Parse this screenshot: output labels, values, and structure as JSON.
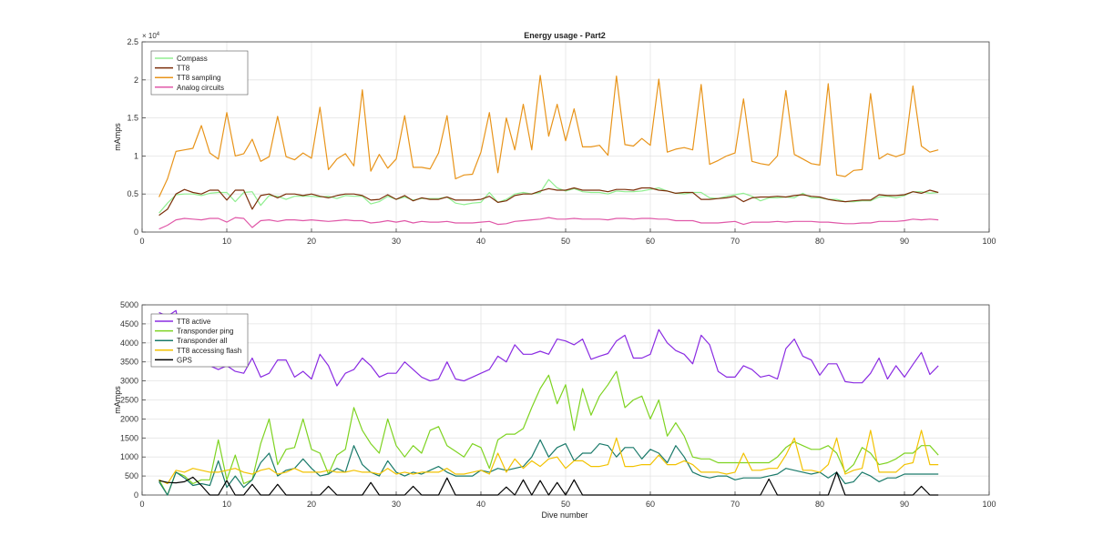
{
  "chart_data": [
    {
      "type": "line",
      "title": "Energy usage - Part2",
      "xlabel": "",
      "ylabel": "mAmps",
      "xlim": [
        0,
        100
      ],
      "ylim": [
        0,
        25000
      ],
      "xticks": [
        0,
        10,
        20,
        30,
        40,
        50,
        60,
        70,
        80,
        90,
        100
      ],
      "yticks": [
        0,
        0.5,
        1,
        1.5,
        2,
        2.5
      ],
      "y_exponent_label": "× 10",
      "y_exponent_power": "4",
      "grid": true,
      "legend_position": "top-left",
      "x": [
        2,
        3,
        4,
        5,
        6,
        7,
        8,
        9,
        10,
        11,
        12,
        13,
        14,
        15,
        16,
        17,
        18,
        19,
        20,
        21,
        22,
        23,
        24,
        25,
        26,
        27,
        28,
        29,
        30,
        31,
        32,
        33,
        34,
        35,
        36,
        37,
        38,
        39,
        40,
        41,
        42,
        43,
        44,
        45,
        46,
        47,
        48,
        49,
        50,
        51,
        52,
        53,
        54,
        55,
        56,
        57,
        58,
        59,
        60,
        61,
        62,
        63,
        64,
        65,
        66,
        67,
        68,
        69,
        70,
        71,
        72,
        73,
        74,
        75,
        76,
        77,
        78,
        79,
        80,
        81,
        82,
        83,
        84,
        85,
        86,
        87,
        88,
        89,
        90,
        91,
        92,
        93,
        94
      ],
      "series": [
        {
          "name": "Compass",
          "color": "#90ee90",
          "values": [
            2500,
            3800,
            4900,
            5000,
            5000,
            4800,
            5100,
            5200,
            5200,
            4000,
            5200,
            5300,
            3500,
            4800,
            4700,
            4300,
            4700,
            4700,
            4700,
            4600,
            4700,
            4400,
            4800,
            4700,
            4700,
            3700,
            4000,
            4700,
            4300,
            4600,
            4200,
            4400,
            4400,
            4400,
            4600,
            3800,
            3600,
            3800,
            3900,
            5200,
            3900,
            4300,
            5000,
            5200,
            5000,
            5200,
            6900,
            5800,
            5400,
            5700,
            5300,
            5200,
            5200,
            5000,
            5400,
            5300,
            5300,
            5400,
            5600,
            5800,
            5400,
            5100,
            5000,
            5200,
            5200,
            4500,
            4400,
            4700,
            4900,
            5100,
            4700,
            4100,
            4500,
            4500,
            4600,
            4500,
            5100,
            4500,
            4500,
            4300,
            4300,
            4000,
            4000,
            4100,
            4100,
            4600,
            4700,
            4500,
            4800,
            5300,
            5300,
            5100,
            5200
          ]
        },
        {
          "name": "TT8",
          "color": "#7b2f0a",
          "values": [
            2200,
            3000,
            5000,
            5600,
            5200,
            5000,
            5500,
            5500,
            4200,
            5500,
            5500,
            3000,
            4800,
            5000,
            4500,
            5000,
            5000,
            4800,
            5000,
            4700,
            4500,
            4800,
            5000,
            5000,
            4800,
            4200,
            4300,
            4900,
            4300,
            4800,
            4100,
            4500,
            4300,
            4300,
            4600,
            4200,
            4200,
            4200,
            4300,
            4700,
            3900,
            4100,
            4800,
            5000,
            5000,
            5400,
            5700,
            5500,
            5500,
            5800,
            5500,
            5500,
            5500,
            5300,
            5600,
            5600,
            5500,
            5800,
            5800,
            5500,
            5400,
            5100,
            5200,
            5200,
            4300,
            4300,
            4400,
            4500,
            4700,
            4000,
            4500,
            4600,
            4600,
            4700,
            4600,
            4800,
            4900,
            4700,
            4600,
            4300,
            4100,
            4000,
            4100,
            4200,
            4200,
            4900,
            4800,
            4800,
            4900,
            5300,
            5100,
            5500,
            5200
          ]
        },
        {
          "name": "TT8 sampling",
          "color": "#e8941a",
          "values": [
            4600,
            7000,
            10600,
            10800,
            11000,
            14000,
            10400,
            9600,
            15700,
            10000,
            10300,
            12200,
            9300,
            9900,
            15200,
            9900,
            9500,
            10400,
            9700,
            16400,
            8200,
            9600,
            10300,
            8700,
            18700,
            8000,
            10200,
            8400,
            9600,
            15300,
            8500,
            8500,
            8300,
            10400,
            15300,
            7000,
            7500,
            7600,
            10500,
            15700,
            7800,
            15000,
            10800,
            16800,
            10800,
            20600,
            12600,
            16800,
            12000,
            16200,
            11200,
            11200,
            11400,
            10100,
            20500,
            11500,
            11300,
            12300,
            11400,
            20100,
            10500,
            10900,
            11100,
            10800,
            19400,
            8900,
            9400,
            10000,
            10400,
            17500,
            9300,
            9000,
            8800,
            10000,
            18600,
            10200,
            9600,
            9000,
            8800,
            19500,
            7500,
            7300,
            8100,
            8200,
            18200,
            9600,
            10300,
            9900,
            10300,
            19200,
            11300,
            10500,
            10800
          ]
        },
        {
          "name": "Analog circuits",
          "color": "#e058a8",
          "values": [
            400,
            900,
            1600,
            1800,
            1700,
            1600,
            1800,
            1800,
            1300,
            1900,
            1800,
            600,
            1500,
            1600,
            1400,
            1600,
            1600,
            1500,
            1600,
            1500,
            1400,
            1500,
            1600,
            1500,
            1500,
            1200,
            1300,
            1500,
            1300,
            1500,
            1200,
            1400,
            1300,
            1300,
            1400,
            1200,
            1200,
            1200,
            1300,
            1400,
            1000,
            1100,
            1400,
            1500,
            1600,
            1700,
            1900,
            1700,
            1700,
            1800,
            1700,
            1700,
            1700,
            1600,
            1800,
            1800,
            1700,
            1800,
            1800,
            1700,
            1700,
            1500,
            1500,
            1500,
            1200,
            1200,
            1200,
            1300,
            1400,
            1000,
            1300,
            1300,
            1300,
            1400,
            1300,
            1400,
            1400,
            1400,
            1300,
            1300,
            1200,
            1100,
            1100,
            1200,
            1200,
            1400,
            1400,
            1400,
            1500,
            1700,
            1600,
            1700,
            1600
          ]
        }
      ]
    },
    {
      "type": "line",
      "title": "",
      "xlabel": "Dive number",
      "ylabel": "mAmps",
      "xlim": [
        0,
        100
      ],
      "ylim": [
        0,
        5000
      ],
      "xticks": [
        0,
        10,
        20,
        30,
        40,
        50,
        60,
        70,
        80,
        90,
        100
      ],
      "yticks": [
        0,
        500,
        1000,
        1500,
        2000,
        2500,
        3000,
        3500,
        4000,
        4500,
        5000
      ],
      "grid": true,
      "legend_position": "top-left",
      "x": [
        2,
        3,
        4,
        5,
        6,
        7,
        8,
        9,
        10,
        11,
        12,
        13,
        14,
        15,
        16,
        17,
        18,
        19,
        20,
        21,
        22,
        23,
        24,
        25,
        26,
        27,
        28,
        29,
        30,
        31,
        32,
        33,
        34,
        35,
        36,
        37,
        38,
        39,
        40,
        41,
        42,
        43,
        44,
        45,
        46,
        47,
        48,
        49,
        50,
        51,
        52,
        53,
        54,
        55,
        56,
        57,
        58,
        59,
        60,
        61,
        62,
        63,
        64,
        65,
        66,
        67,
        68,
        69,
        70,
        71,
        72,
        73,
        74,
        75,
        76,
        77,
        78,
        79,
        80,
        81,
        82,
        83,
        84,
        85,
        86,
        87,
        88,
        89,
        90,
        91,
        92,
        93,
        94
      ],
      "series": [
        {
          "name": "TT8 active",
          "color": "#8a2be2",
          "values": [
            4800,
            4700,
            4850,
            3700,
            3400,
            3500,
            3400,
            3300,
            3400,
            3250,
            3200,
            3600,
            3100,
            3200,
            3550,
            3550,
            3100,
            3250,
            3050,
            3700,
            3400,
            2870,
            3200,
            3300,
            3600,
            3400,
            3100,
            3200,
            3200,
            3500,
            3300,
            3100,
            3000,
            3050,
            3500,
            3050,
            3000,
            3100,
            3200,
            3300,
            3650,
            3500,
            3950,
            3700,
            3700,
            3780,
            3700,
            4100,
            4050,
            3950,
            4100,
            3570,
            3650,
            3720,
            4050,
            4200,
            3600,
            3600,
            3700,
            4350,
            4000,
            3800,
            3700,
            3450,
            4200,
            3950,
            3250,
            3100,
            3100,
            3400,
            3300,
            3100,
            3150,
            3050,
            3850,
            4100,
            3650,
            3550,
            3150,
            3450,
            3450,
            2980,
            2950,
            2950,
            3200,
            3600,
            3050,
            3400,
            3100,
            3430,
            3750,
            3170,
            3400
          ]
        },
        {
          "name": "Transponder ping",
          "color": "#7ed321",
          "values": [
            400,
            0,
            600,
            500,
            300,
            400,
            400,
            1450,
            400,
            1050,
            300,
            400,
            1350,
            2000,
            800,
            1200,
            1250,
            2000,
            1200,
            1100,
            550,
            1050,
            1200,
            2300,
            1700,
            1350,
            1100,
            2000,
            1300,
            1000,
            1300,
            1100,
            1700,
            1800,
            1300,
            1150,
            1000,
            1350,
            1250,
            700,
            1450,
            1600,
            1600,
            1750,
            2300,
            2800,
            3150,
            2400,
            2900,
            1700,
            2800,
            2100,
            2600,
            2900,
            3250,
            2300,
            2500,
            2600,
            2000,
            2500,
            1550,
            1900,
            1550,
            1000,
            950,
            950,
            850,
            850,
            850,
            850,
            850,
            850,
            850,
            1000,
            1250,
            1400,
            1300,
            1200,
            1200,
            1300,
            1100,
            600,
            800,
            1250,
            1100,
            800,
            850,
            950,
            1100,
            1100,
            1300,
            1300,
            1050
          ]
        },
        {
          "name": "Transponder all",
          "color": "#1a7a6a",
          "values": [
            350,
            0,
            600,
            450,
            250,
            300,
            250,
            900,
            200,
            500,
            200,
            400,
            850,
            1100,
            500,
            650,
            700,
            950,
            700,
            500,
            550,
            700,
            600,
            1300,
            800,
            600,
            500,
            900,
            600,
            500,
            600,
            550,
            650,
            750,
            600,
            500,
            500,
            500,
            650,
            600,
            700,
            650,
            700,
            750,
            1000,
            1450,
            1000,
            1250,
            1350,
            900,
            1100,
            1100,
            1350,
            1300,
            1000,
            1250,
            1250,
            950,
            1200,
            1100,
            850,
            1300,
            1000,
            600,
            500,
            450,
            500,
            500,
            400,
            450,
            450,
            450,
            500,
            550,
            700,
            650,
            600,
            550,
            600,
            450,
            600,
            300,
            350,
            600,
            500,
            350,
            450,
            450,
            550,
            550,
            550,
            550,
            550
          ]
        },
        {
          "name": "TT8 accessing flash",
          "color": "#f2c200",
          "values": [
            400,
            300,
            650,
            600,
            700,
            650,
            600,
            600,
            650,
            700,
            600,
            550,
            650,
            700,
            550,
            600,
            700,
            600,
            600,
            600,
            650,
            600,
            600,
            650,
            600,
            600,
            550,
            700,
            550,
            600,
            550,
            600,
            600,
            600,
            700,
            550,
            550,
            600,
            650,
            550,
            1100,
            600,
            950,
            700,
            900,
            750,
            950,
            1000,
            700,
            900,
            900,
            750,
            750,
            800,
            1500,
            750,
            750,
            800,
            800,
            1050,
            800,
            800,
            900,
            800,
            600,
            600,
            600,
            550,
            600,
            1100,
            650,
            650,
            700,
            700,
            1050,
            1500,
            650,
            650,
            600,
            800,
            1500,
            550,
            650,
            700,
            1700,
            600,
            600,
            600,
            800,
            850,
            1700,
            800,
            800
          ]
        },
        {
          "name": "GPS",
          "color": "#000000",
          "values": [
            380,
            330,
            320,
            350,
            470,
            250,
            0,
            0,
            380,
            0,
            0,
            280,
            0,
            0,
            280,
            0,
            0,
            0,
            0,
            0,
            230,
            0,
            0,
            0,
            0,
            330,
            0,
            0,
            0,
            0,
            230,
            0,
            0,
            0,
            450,
            0,
            0,
            0,
            0,
            0,
            0,
            210,
            0,
            400,
            0,
            380,
            0,
            330,
            0,
            400,
            0,
            0,
            0,
            0,
            0,
            0,
            0,
            0,
            0,
            0,
            0,
            0,
            0,
            0,
            0,
            0,
            0,
            0,
            0,
            0,
            0,
            0,
            420,
            0,
            0,
            0,
            0,
            0,
            0,
            0,
            600,
            0,
            0,
            0,
            0,
            0,
            0,
            0,
            0,
            0,
            230,
            0,
            0
          ]
        }
      ]
    }
  ]
}
